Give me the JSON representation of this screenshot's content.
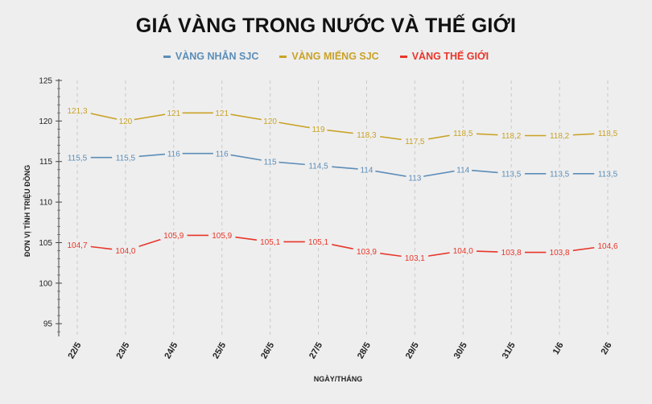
{
  "chart_data": {
    "type": "line",
    "title": "GIÁ VÀNG TRONG NƯỚC VÀ THẾ GIỚI",
    "xlabel": "NGÀY/THÁNG",
    "ylabel": "ĐƠN VỊ TÍNH TRIỆU ĐỒNG",
    "categories": [
      "22/5",
      "23/5",
      "24/5",
      "25/5",
      "26/5",
      "27/5",
      "28/5",
      "29/5",
      "30/5",
      "31/5",
      "1/6",
      "2/6"
    ],
    "ylim": [
      93,
      125
    ],
    "yticks": [
      95,
      100,
      105,
      110,
      115,
      120,
      125
    ],
    "grid": "vertical dashed",
    "legend": "top-center",
    "series": [
      {
        "name": "VÀNG NHẪN SJC",
        "color": "#5b8db8",
        "values": [
          115.5,
          115.5,
          116,
          116,
          115,
          114.5,
          114,
          113,
          114,
          113.5,
          113.5,
          113.5
        ],
        "labels": [
          "115,5",
          "115,5",
          "116",
          "116",
          "115",
          "114,5",
          "114",
          "113",
          "114",
          "113,5",
          "113,5",
          "113,5"
        ]
      },
      {
        "name": "VÀNG MIẾNG SJC",
        "color": "#c9a227",
        "values": [
          121.3,
          120,
          121,
          121,
          120,
          119,
          118.3,
          117.5,
          118.5,
          118.2,
          118.2,
          118.5
        ],
        "labels": [
          "121,3",
          "120",
          "121",
          "121",
          "120",
          "119",
          "118,3",
          "117,5",
          "118,5",
          "118,2",
          "118,2",
          "118,5"
        ]
      },
      {
        "name": "VÀNG THẾ GIỚI",
        "color": "#e8362a",
        "values": [
          104.7,
          104.0,
          105.9,
          105.9,
          105.1,
          105.1,
          103.9,
          103.1,
          104.0,
          103.8,
          103.8,
          104.6
        ],
        "labels": [
          "104,7",
          "104,0",
          "105,9",
          "105,9",
          "105,1",
          "105,1",
          "103,9",
          "103,1",
          "104,0",
          "103,8",
          "103,8",
          "104,6"
        ]
      }
    ]
  }
}
